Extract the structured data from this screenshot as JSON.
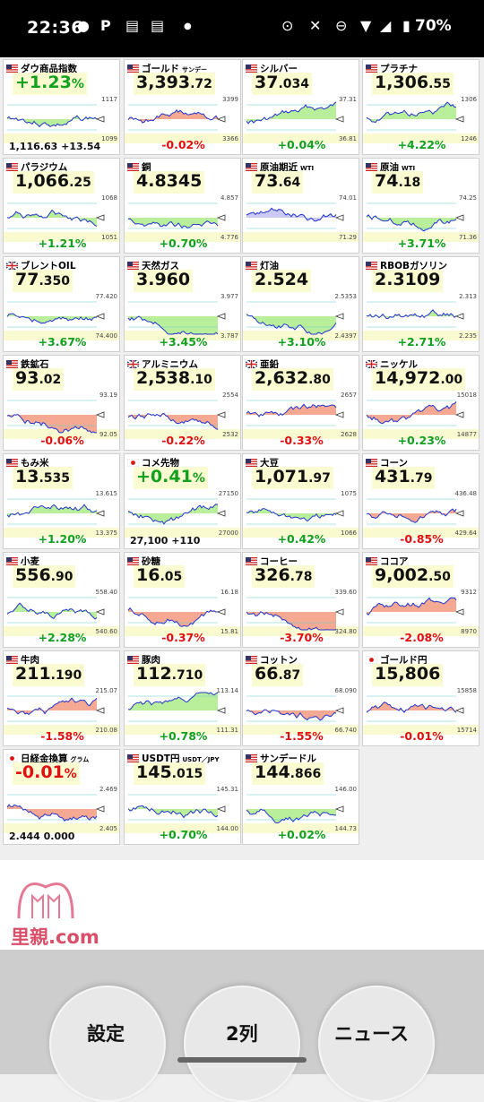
{
  "status": {
    "time": "22:36",
    "battery": "70%"
  },
  "tiles": [
    {
      "name": "ダウ商品指数",
      "sub": "",
      "flag": "us",
      "big_int": "+1.23",
      "big_dec": "%",
      "style": "g",
      "bottom": "1,116.63 +13.54",
      "chg": "",
      "dir": "up",
      "r1": "1117",
      "r2": "1099",
      "fill": "g"
    },
    {
      "name": "ゴールド",
      "sub": "サンデー",
      "flag": "us",
      "big_int": "3,393",
      "big_dec": ".72",
      "style": "",
      "chg": "-0.02%",
      "dir": "dn",
      "r1": "3399",
      "r2": "3366",
      "fill": "r"
    },
    {
      "name": "シルバー",
      "sub": "",
      "flag": "us",
      "big_int": "37",
      "big_dec": ".034",
      "style": "",
      "chg": "+0.04%",
      "dir": "up",
      "r1": "37.31",
      "r2": "36.81",
      "fill": "g"
    },
    {
      "name": "プラチナ",
      "sub": "",
      "flag": "us",
      "big_int": "1,306",
      "big_dec": ".55",
      "style": "",
      "chg": "+4.22%",
      "dir": "up",
      "r1": "1306",
      "r2": "1246",
      "fill": "g"
    },
    {
      "name": "パラジウム",
      "sub": "",
      "flag": "us",
      "big_int": "1,066",
      "big_dec": ".25",
      "style": "",
      "chg": "+1.21%",
      "dir": "up",
      "r1": "1068",
      "r2": "1051",
      "fill": "g"
    },
    {
      "name": "銅",
      "sub": "",
      "flag": "us",
      "big_int": "4.8345",
      "big_dec": "",
      "style": "",
      "chg": "+0.70%",
      "dir": "up",
      "r1": "4.857",
      "r2": "4.776",
      "fill": "g"
    },
    {
      "name": "原油期近",
      "sub": "WTI",
      "flag": "us",
      "big_int": "73",
      "big_dec": ".64",
      "style": "",
      "chg": "",
      "dir": "up",
      "r1": "74.01",
      "r2": "71.29",
      "fill": "b"
    },
    {
      "name": "原油",
      "sub": "WTI",
      "flag": "us",
      "big_int": "74",
      "big_dec": ".18",
      "style": "",
      "chg": "+3.71%",
      "dir": "up",
      "r1": "74.25",
      "r2": "71.36",
      "fill": "g"
    },
    {
      "name": "ブレントOIL",
      "sub": "",
      "flag": "uk",
      "big_int": "77",
      "big_dec": ".350",
      "style": "",
      "chg": "+3.67%",
      "dir": "up",
      "r1": "77.420",
      "r2": "74.400",
      "fill": "g"
    },
    {
      "name": "天然ガス",
      "sub": "",
      "flag": "us",
      "big_int": "3.960",
      "big_dec": "",
      "style": "",
      "chg": "+3.45%",
      "dir": "up",
      "r1": "3.977",
      "r2": "3.787",
      "fill": "g"
    },
    {
      "name": "灯油",
      "sub": "",
      "flag": "us",
      "big_int": "2.524",
      "big_dec": "",
      "style": "",
      "chg": "+3.10%",
      "dir": "up",
      "r1": "2.5353",
      "r2": "2.4397",
      "fill": "g"
    },
    {
      "name": "RBOBガソリン",
      "sub": "",
      "flag": "us",
      "big_int": "2.3109",
      "big_dec": "",
      "style": "",
      "chg": "+2.71%",
      "dir": "up",
      "r1": "2.313",
      "r2": "2.235",
      "fill": "g"
    },
    {
      "name": "鉄鉱石",
      "sub": "",
      "flag": "us",
      "big_int": "93",
      "big_dec": ".02",
      "style": "",
      "chg": "-0.06%",
      "dir": "dn",
      "r1": "93.19",
      "r2": "92.05",
      "fill": "r"
    },
    {
      "name": "アルミニウム",
      "sub": "",
      "flag": "uk",
      "big_int": "2,538",
      "big_dec": ".10",
      "style": "",
      "chg": "-0.22%",
      "dir": "dn",
      "r1": "2554",
      "r2": "2532",
      "fill": "r"
    },
    {
      "name": "亜鉛",
      "sub": "",
      "flag": "uk",
      "big_int": "2,632",
      "big_dec": ".80",
      "style": "",
      "chg": "-0.33%",
      "dir": "dn",
      "r1": "2657",
      "r2": "2628",
      "fill": "r"
    },
    {
      "name": "ニッケル",
      "sub": "",
      "flag": "uk",
      "big_int": "14,972",
      "big_dec": ".00",
      "style": "",
      "chg": "+0.23%",
      "dir": "up",
      "r1": "15018",
      "r2": "14877",
      "fill": "r"
    },
    {
      "name": "もみ米",
      "sub": "",
      "flag": "us",
      "big_int": "13",
      "big_dec": ".535",
      "style": "",
      "chg": "+1.20%",
      "dir": "up",
      "r1": "13.615",
      "r2": "13.375",
      "fill": "g"
    },
    {
      "name": "コメ先物",
      "sub": "",
      "flag": "jp",
      "big_int": "+0.41",
      "big_dec": "%",
      "style": "g",
      "bottom": "27,100 +110",
      "chg": "",
      "dir": "up",
      "r1": "27150",
      "r2": "27000",
      "fill": "g"
    },
    {
      "name": "大豆",
      "sub": "",
      "flag": "us",
      "big_int": "1,071",
      "big_dec": ".97",
      "style": "",
      "chg": "+0.42%",
      "dir": "up",
      "r1": "1075",
      "r2": "1066",
      "fill": "g"
    },
    {
      "name": "コーン",
      "sub": "",
      "flag": "us",
      "big_int": "431",
      "big_dec": ".79",
      "style": "",
      "chg": "-0.85%",
      "dir": "dn",
      "r1": "436.48",
      "r2": "429.64",
      "fill": "r"
    },
    {
      "name": "小麦",
      "sub": "",
      "flag": "us",
      "big_int": "556",
      "big_dec": ".90",
      "style": "",
      "chg": "+2.28%",
      "dir": "up",
      "r1": "558.40",
      "r2": "540.60",
      "fill": "g"
    },
    {
      "name": "砂糖",
      "sub": "",
      "flag": "us",
      "big_int": "16",
      "big_dec": ".05",
      "style": "",
      "chg": "-0.37%",
      "dir": "dn",
      "r1": "16.18",
      "r2": "15.81",
      "fill": "r"
    },
    {
      "name": "コーヒー",
      "sub": "",
      "flag": "us",
      "big_int": "326",
      "big_dec": ".78",
      "style": "",
      "chg": "-3.70%",
      "dir": "dn",
      "r1": "339.60",
      "r2": "324.80",
      "fill": "r"
    },
    {
      "name": "ココア",
      "sub": "",
      "flag": "us",
      "big_int": "9,002",
      "big_dec": ".50",
      "style": "",
      "chg": "-2.08%",
      "dir": "dn",
      "r1": "9312",
      "r2": "8970",
      "fill": "r"
    },
    {
      "name": "牛肉",
      "sub": "",
      "flag": "us",
      "big_int": "211",
      "big_dec": ".190",
      "style": "",
      "chg": "-1.58%",
      "dir": "dn",
      "r1": "215.07",
      "r2": "210.08",
      "fill": "r"
    },
    {
      "name": "豚肉",
      "sub": "",
      "flag": "us",
      "big_int": "112",
      "big_dec": ".710",
      "style": "",
      "chg": "+0.78%",
      "dir": "up",
      "r1": "113.14",
      "r2": "111.31",
      "fill": "g"
    },
    {
      "name": "コットン",
      "sub": "",
      "flag": "us",
      "big_int": "66",
      "big_dec": ".87",
      "style": "",
      "chg": "-1.55%",
      "dir": "dn",
      "r1": "68.090",
      "r2": "66.740",
      "fill": "r"
    },
    {
      "name": "ゴールド円",
      "sub": "",
      "flag": "jp",
      "big_int": "15,806",
      "big_dec": "",
      "style": "",
      "chg": "-0.01%",
      "dir": "dn",
      "r1": "15858",
      "r2": "15714",
      "fill": "r"
    },
    {
      "name": "日経金換算",
      "sub": "グラム",
      "flag": "jp",
      "big_int": "-0.01",
      "big_dec": "%",
      "style": "r",
      "bottom": "2.444 0.000",
      "chg": "",
      "dir": "dn",
      "r1": "2.469",
      "r2": "2.405",
      "fill": "r"
    },
    {
      "name": "USDT円",
      "sub": "USDT／JPY",
      "flag": "us",
      "big_int": "145",
      "big_dec": ".015",
      "style": "",
      "chg": "+0.70%",
      "dir": "up",
      "r1": "145.31",
      "r2": "144.00",
      "fill": "g"
    },
    {
      "name": "サンデードル",
      "sub": "",
      "flag": "us",
      "big_int": "144",
      "big_dec": ".866",
      "style": "",
      "chg": "+0.02%",
      "dir": "up",
      "r1": "146.00",
      "r2": "144.73",
      "fill": "g"
    }
  ],
  "ad": {
    "text": "里親.com"
  },
  "nav": {
    "settings": "設定",
    "columns": "2列",
    "news": "ニュース"
  }
}
